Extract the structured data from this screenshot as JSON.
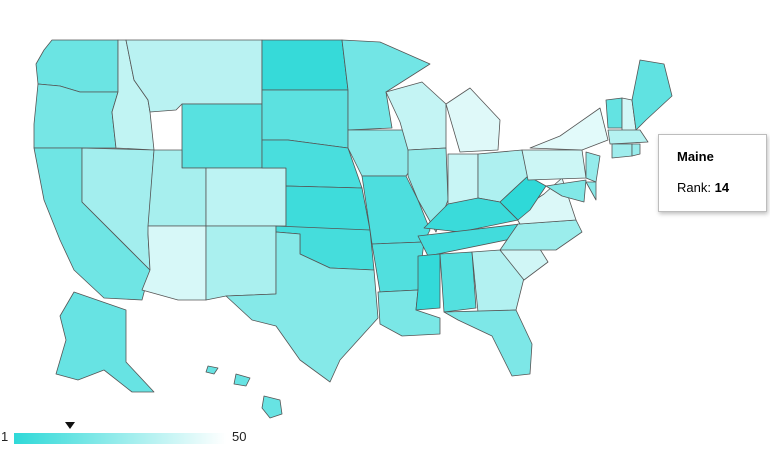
{
  "tooltip": {
    "state": "Maine",
    "label": "Rank:",
    "value": "14"
  },
  "legend": {
    "min_label": "1",
    "max_label": "50",
    "color_min": "#2fd9d8",
    "color_max": "#ffffff",
    "marker_rank": 14
  },
  "colors": {
    "border": "#555555",
    "background": "#ffffff"
  },
  "map_data": {
    "metric": "Rank",
    "states": [
      {
        "name": "Washington",
        "rank": 17
      },
      {
        "name": "Oregon",
        "rank": 20
      },
      {
        "name": "California",
        "rank": 18
      },
      {
        "name": "Idaho",
        "rank": 40
      },
      {
        "name": "Nevada",
        "rank": 32
      },
      {
        "name": "Montana",
        "rank": 38
      },
      {
        "name": "Wyoming",
        "rank": 12
      },
      {
        "name": "Utah",
        "rank": 33
      },
      {
        "name": "Arizona",
        "rank": 46
      },
      {
        "name": "Colorado",
        "rank": 39
      },
      {
        "name": "New Mexico",
        "rank": 34
      },
      {
        "name": "North Dakota",
        "rank": 3
      },
      {
        "name": "South Dakota",
        "rank": 13
      },
      {
        "name": "Nebraska",
        "rank": 8
      },
      {
        "name": "Kansas",
        "rank": 5
      },
      {
        "name": "Oklahoma",
        "rank": 7
      },
      {
        "name": "Texas",
        "rank": 24
      },
      {
        "name": "Minnesota",
        "rank": 19
      },
      {
        "name": "Iowa",
        "rank": 26
      },
      {
        "name": "Missouri",
        "rank": 9
      },
      {
        "name": "Arkansas",
        "rank": 10
      },
      {
        "name": "Louisiana",
        "rank": 21
      },
      {
        "name": "Wisconsin",
        "rank": 41
      },
      {
        "name": "Illinois",
        "rank": 27
      },
      {
        "name": "Michigan",
        "rank": 48
      },
      {
        "name": "Indiana",
        "rank": 42
      },
      {
        "name": "Ohio",
        "rank": 35
      },
      {
        "name": "Kentucky",
        "rank": 4
      },
      {
        "name": "Tennessee",
        "rank": 6
      },
      {
        "name": "Mississippi",
        "rank": 2
      },
      {
        "name": "Alabama",
        "rank": 11
      },
      {
        "name": "Georgia",
        "rank": 36
      },
      {
        "name": "Florida",
        "rank": 22
      },
      {
        "name": "South Carolina",
        "rank": 44
      },
      {
        "name": "North Carolina",
        "rank": 30
      },
      {
        "name": "Virginia",
        "rank": 47
      },
      {
        "name": "West Virginia",
        "rank": 1
      },
      {
        "name": "Pennsylvania",
        "rank": 43
      },
      {
        "name": "New York",
        "rank": 49
      },
      {
        "name": "Vermont",
        "rank": 15
      },
      {
        "name": "New Hampshire",
        "rank": 45
      },
      {
        "name": "Maine",
        "rank": 14
      },
      {
        "name": "Massachusetts",
        "rank": 37
      },
      {
        "name": "Connecticut",
        "rank": 31
      },
      {
        "name": "Rhode Island",
        "rank": 29
      },
      {
        "name": "New Jersey",
        "rank": 28
      },
      {
        "name": "Delaware",
        "rank": 25
      },
      {
        "name": "Maryland",
        "rank": 23
      },
      {
        "name": "Alaska",
        "rank": 16
      },
      {
        "name": "Hawaii",
        "rank": 16
      }
    ]
  }
}
